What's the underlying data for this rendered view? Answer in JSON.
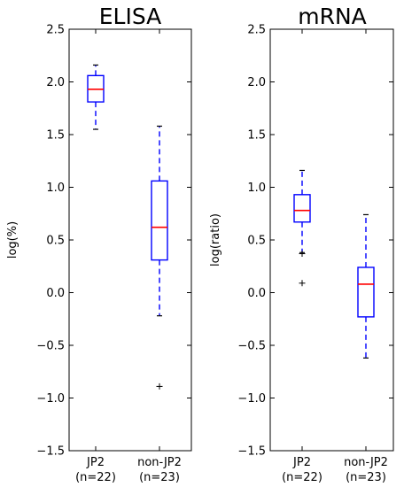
{
  "chart_data": [
    {
      "type": "box",
      "title": "ELISA",
      "ylabel": "log(%)",
      "ylim": [
        -1.5,
        2.5
      ],
      "yticks": [
        "−1.5",
        "−1.0",
        "−0.5",
        "0.0",
        "0.5",
        "1.0",
        "1.5",
        "2.0",
        "2.5"
      ],
      "categories": [
        {
          "line1": "JP2",
          "line2": "(n=22)"
        },
        {
          "line1": "non-JP2",
          "line2": "(n=23)"
        }
      ],
      "boxes": [
        {
          "whislo": 1.55,
          "q1": 1.81,
          "med": 1.93,
          "q3": 2.06,
          "whishi": 2.16,
          "fliers": []
        },
        {
          "whislo": -0.22,
          "q1": 0.31,
          "med": 0.62,
          "q3": 1.06,
          "whishi": 1.58,
          "fliers": [
            -0.89
          ]
        }
      ],
      "grid": false,
      "box_color": "#0000ff",
      "median_color": "#ff0000"
    },
    {
      "type": "box",
      "title": "mRNA",
      "ylabel": "log(ratio)",
      "ylim": [
        -1.5,
        2.5
      ],
      "yticks": [
        "−1.5",
        "−1.0",
        "−0.5",
        "0.0",
        "0.5",
        "1.0",
        "1.5",
        "2.0",
        "2.5"
      ],
      "categories": [
        {
          "line1": "JP2",
          "line2": "(n=22)"
        },
        {
          "line1": "non-JP2",
          "line2": "(n=23)"
        }
      ],
      "boxes": [
        {
          "whislo": 0.38,
          "q1": 0.67,
          "med": 0.78,
          "q3": 0.93,
          "whishi": 1.16,
          "fliers": [
            0.37,
            0.09
          ]
        },
        {
          "whislo": -0.62,
          "q1": -0.23,
          "med": 0.08,
          "q3": 0.24,
          "whishi": 0.74,
          "fliers": []
        }
      ],
      "grid": false,
      "box_color": "#0000ff",
      "median_color": "#ff0000"
    }
  ]
}
